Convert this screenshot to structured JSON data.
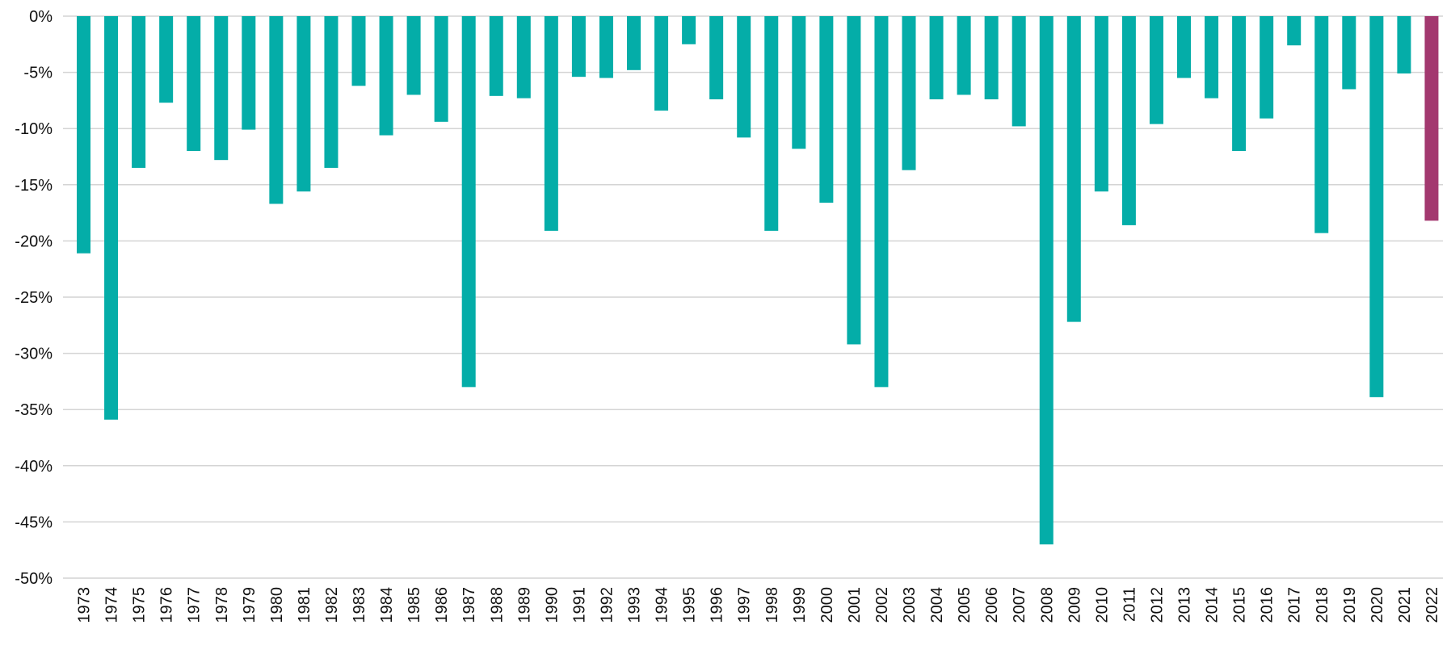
{
  "chart_data": {
    "type": "bar",
    "title": "",
    "xlabel": "",
    "ylabel": "",
    "ylim": [
      -50,
      0
    ],
    "yticks": [
      0,
      -5,
      -10,
      -15,
      -20,
      -25,
      -30,
      -35,
      -40,
      -45,
      -50
    ],
    "ytick_labels": [
      "0%",
      "-5%",
      "-10%",
      "-15%",
      "-20%",
      "-25%",
      "-30%",
      "-35%",
      "-40%",
      "-45%",
      "-50%"
    ],
    "grid": true,
    "legend": "none",
    "categories": [
      "1973",
      "1974",
      "1975",
      "1976",
      "1977",
      "1978",
      "1979",
      "1980",
      "1981",
      "1982",
      "1983",
      "1984",
      "1985",
      "1986",
      "1987",
      "1988",
      "1989",
      "1990",
      "1991",
      "1992",
      "1993",
      "1994",
      "1995",
      "1996",
      "1997",
      "1998",
      "1999",
      "2000",
      "2001",
      "2002",
      "2003",
      "2004",
      "2005",
      "2006",
      "2007",
      "2008",
      "2009",
      "2010",
      "2011",
      "2012",
      "2013",
      "2014",
      "2015",
      "2016",
      "2017",
      "2018",
      "2019",
      "2020",
      "2021",
      "2022"
    ],
    "values": [
      -21.1,
      -35.9,
      -13.5,
      -7.7,
      -12.0,
      -12.8,
      -10.1,
      -16.7,
      -15.6,
      -13.5,
      -6.2,
      -10.6,
      -7.0,
      -9.4,
      -33.0,
      -7.1,
      -7.3,
      -19.1,
      -5.4,
      -5.5,
      -4.8,
      -8.4,
      -2.5,
      -7.4,
      -10.8,
      -19.1,
      -11.8,
      -16.6,
      -29.2,
      -33.0,
      -13.7,
      -7.4,
      -7.0,
      -7.4,
      -9.8,
      -47.0,
      -27.2,
      -15.6,
      -18.6,
      -9.6,
      -5.5,
      -7.3,
      -12.0,
      -9.1,
      -2.6,
      -19.3,
      -6.5,
      -33.9,
      -5.1,
      -18.2
    ],
    "colors": {
      "default": "#04ada8",
      "highlight": "#a3386f"
    },
    "highlight_category": "2022"
  }
}
